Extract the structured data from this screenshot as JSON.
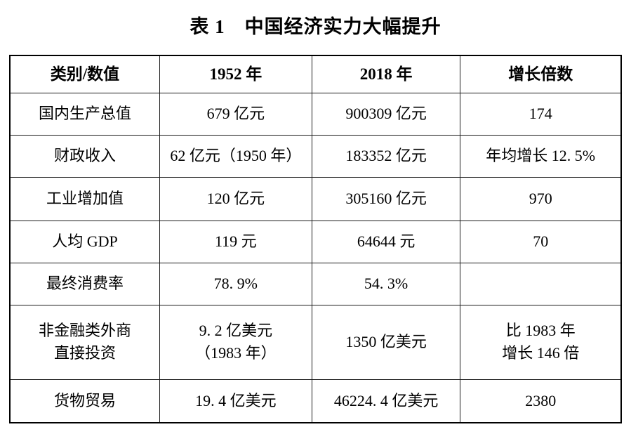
{
  "page": {
    "title": "表 1　中国经济实力大幅提升"
  },
  "table": {
    "headers": [
      "类别/数值",
      "1952 年",
      "2018 年",
      "增长倍数"
    ],
    "rows": [
      {
        "cells": [
          "国内生产总值",
          "679 亿元",
          "900309 亿元",
          "174"
        ]
      },
      {
        "cells": [
          "财政收入",
          "62 亿元（1950 年）",
          "183352 亿元",
          "年均增长 12. 5%"
        ]
      },
      {
        "cells": [
          "工业增加值",
          "120 亿元",
          "305160 亿元",
          "970"
        ]
      },
      {
        "cells": [
          "人均 GDP",
          "119 元",
          "64644 元",
          "70"
        ]
      },
      {
        "cells": [
          "最终消费率",
          "78. 9%",
          "54. 3%",
          ""
        ]
      },
      {
        "cells": [
          "非金融类外商\n直接投资",
          "9. 2 亿美元\n（1983 年）",
          "1350 亿美元",
          "比 1983 年\n增长 146 倍"
        ]
      },
      {
        "cells": [
          "货物贸易",
          "19. 4 亿美元",
          "46224. 4 亿美元",
          "2380"
        ]
      }
    ]
  }
}
